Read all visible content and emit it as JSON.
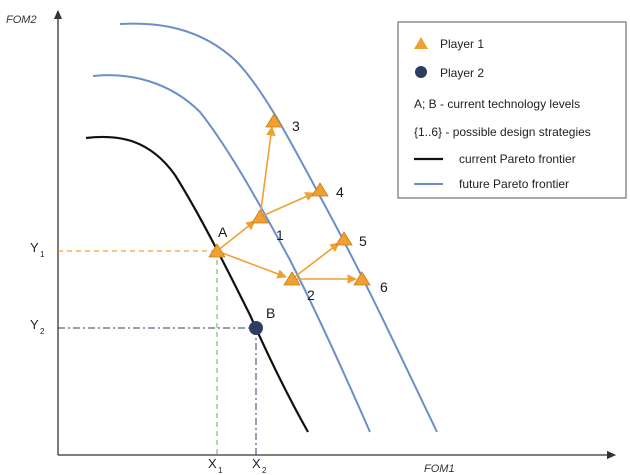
{
  "axes": {
    "x_title": "FOM1",
    "y_title": "FOM2"
  },
  "ticks": {
    "x1": {
      "main": "X",
      "sub": "1"
    },
    "x2": {
      "main": "X",
      "sub": "2"
    },
    "y1": {
      "main": "Y",
      "sub": "1"
    },
    "y2": {
      "main": "Y",
      "sub": "2"
    }
  },
  "points": {
    "A": "A",
    "B": "B",
    "s1": "1",
    "s2": "2",
    "s3": "3",
    "s4": "4",
    "s5": "5",
    "s6": "6"
  },
  "legend": {
    "player1": "Player 1",
    "player2": "Player 2",
    "ab_note": "A; B  - current technology levels",
    "strategies_note": "{1..6}  - possible design strategies",
    "current_frontier": "current Pareto frontier",
    "future_frontier": "future Pareto frontier"
  },
  "colors": {
    "orange": "#F0A030",
    "navy": "#2E3E63",
    "blue_frontier": "#6B8FC9",
    "black_frontier": "#111111",
    "green_guide": "#7BBF6A",
    "axis": "#333333"
  }
}
